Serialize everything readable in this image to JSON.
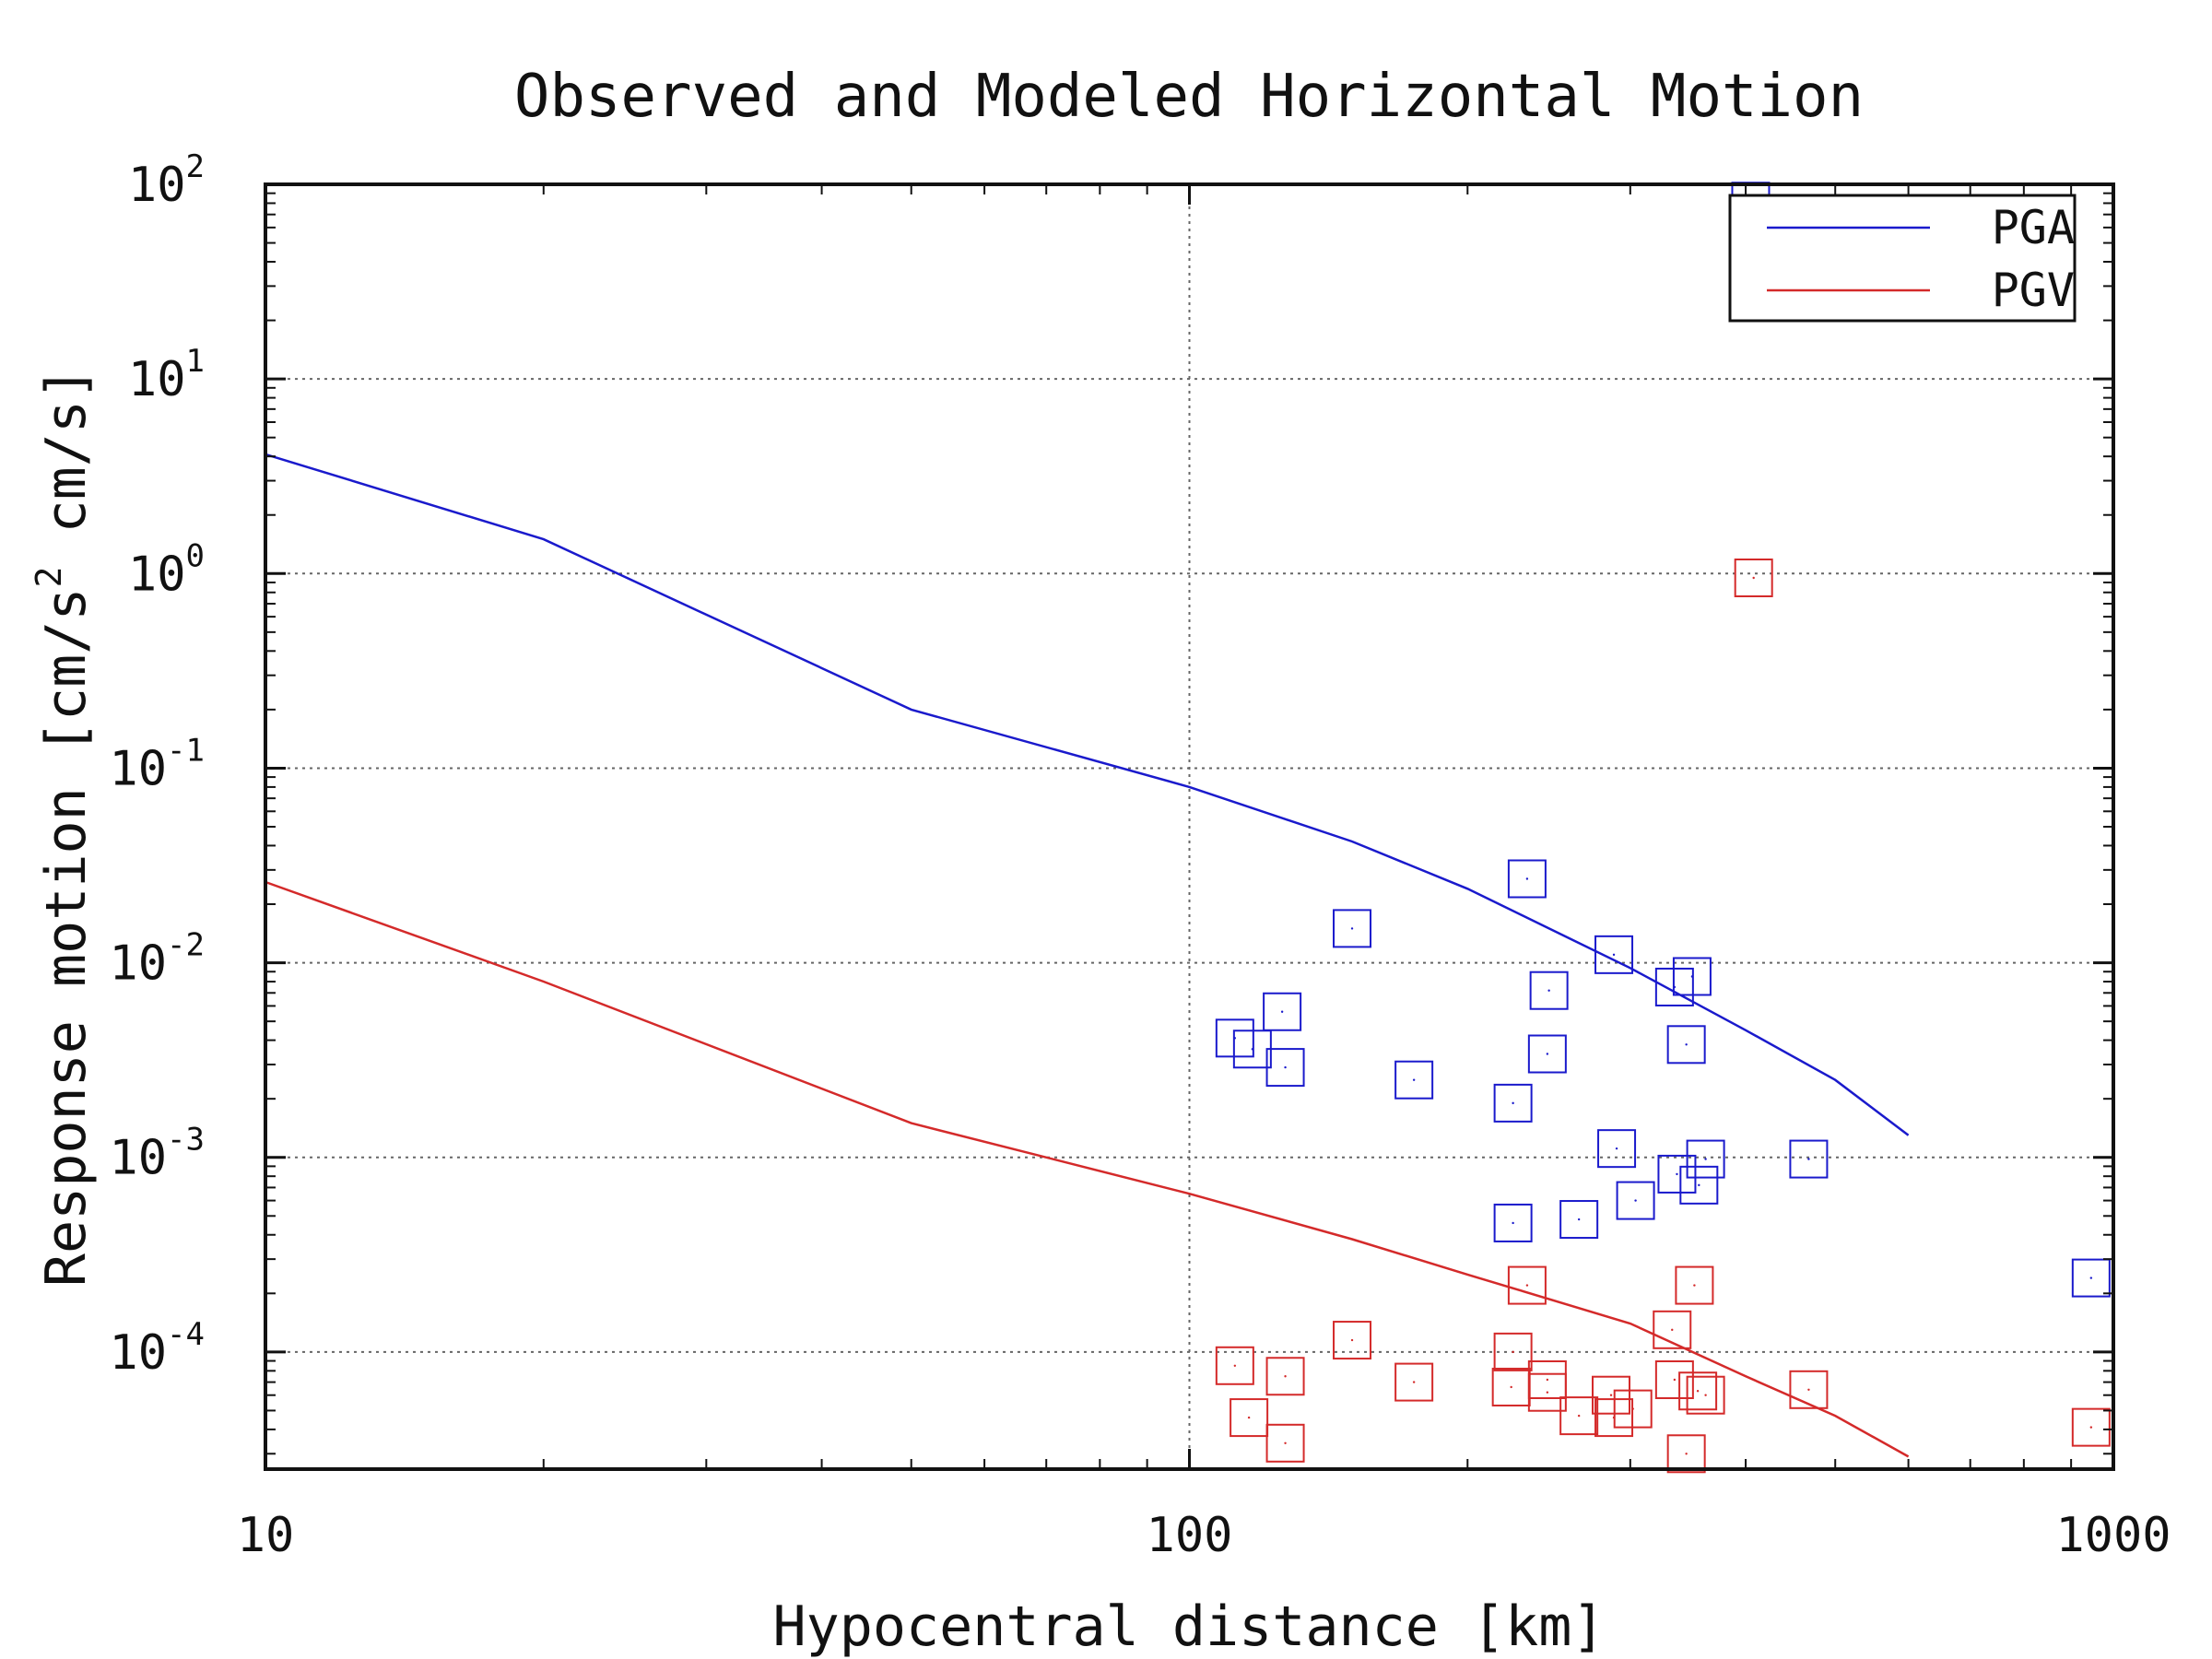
{
  "chart_data": {
    "type": "scatter",
    "title": "Observed and Modeled Horizontal Motion",
    "xlabel": "Hypocentral distance [km]",
    "ylabel": {
      "part1": "Response motion  [cm/s",
      "sup": "2",
      "part2": "  cm/s]"
    },
    "x_scale": "log",
    "y_scale": "log",
    "xlim": [
      10,
      1000
    ],
    "ylim": [
      2.5e-05,
      100
    ],
    "grid": true,
    "legend_position": "top-right",
    "x_ticks": [
      {
        "value": 10,
        "label": "10"
      },
      {
        "value": 100,
        "label": "100"
      },
      {
        "value": 1000,
        "label": "1000"
      }
    ],
    "y_ticks": [
      {
        "value": 0.0001,
        "base": "10",
        "exp": "-4"
      },
      {
        "value": 0.001,
        "base": "10",
        "exp": "-3"
      },
      {
        "value": 0.01,
        "base": "10",
        "exp": "-2"
      },
      {
        "value": 0.1,
        "base": "10",
        "exp": "-1"
      },
      {
        "value": 1,
        "base": "10",
        "exp": "0"
      },
      {
        "value": 10,
        "base": "10",
        "exp": "1"
      },
      {
        "value": 100,
        "base": "10",
        "exp": "2"
      }
    ],
    "series": [
      {
        "name": "PGA",
        "color": "#1a1acc",
        "line": [
          [
            10,
            4.1
          ],
          [
            20,
            1.5
          ],
          [
            50,
            0.2
          ],
          [
            100,
            0.08
          ],
          [
            150,
            0.042
          ],
          [
            200,
            0.024
          ],
          [
            300,
            0.0094
          ],
          [
            400,
            0.0045
          ],
          [
            500,
            0.0025
          ],
          [
            600,
            0.0013
          ]
        ],
        "points": [
          [
            405,
            82
          ],
          [
            232,
            0.027
          ],
          [
            150,
            0.015
          ],
          [
            288,
            0.011
          ],
          [
            350,
            0.0085
          ],
          [
            335,
            0.0075
          ],
          [
            245,
            0.0072
          ],
          [
            126,
            0.0056
          ],
          [
            112,
            0.0041
          ],
          [
            117,
            0.0036
          ],
          [
            127,
            0.0029
          ],
          [
            244,
            0.0034
          ],
          [
            345,
            0.0038
          ],
          [
            175,
            0.0025
          ],
          [
            224,
            0.0019
          ],
          [
            468,
            0.00098
          ],
          [
            290,
            0.00111
          ],
          [
            362,
            0.00098
          ],
          [
            337,
            0.00082
          ],
          [
            356,
            0.00072
          ],
          [
            304,
            0.0006
          ],
          [
            264,
            0.00048
          ],
          [
            224,
            0.00046
          ],
          [
            946,
            0.00024
          ]
        ]
      },
      {
        "name": "PGV",
        "color": "#d42a2a",
        "line": [
          [
            10,
            0.026
          ],
          [
            20,
            0.008
          ],
          [
            50,
            0.0015
          ],
          [
            100,
            0.00065
          ],
          [
            150,
            0.00038
          ],
          [
            200,
            0.00025
          ],
          [
            300,
            0.00014
          ],
          [
            400,
            7.5e-05
          ],
          [
            500,
            4.7e-05
          ],
          [
            600,
            2.9e-05
          ]
        ],
        "points": [
          [
            408,
            0.95
          ],
          [
            232,
            0.00022
          ],
          [
            352,
            0.00022
          ],
          [
            150,
            0.000115
          ],
          [
            333,
            0.00013
          ],
          [
            224,
            0.0001
          ],
          [
            112,
            8.5e-05
          ],
          [
            127,
            7.5e-05
          ],
          [
            175,
            7e-05
          ],
          [
            244,
            7.2e-05
          ],
          [
            223,
            6.6e-05
          ],
          [
            244,
            6.2e-05
          ],
          [
            335,
            7.2e-05
          ],
          [
            286,
            6e-05
          ],
          [
            355,
            6.3e-05
          ],
          [
            362,
            6e-05
          ],
          [
            468,
            6.4e-05
          ],
          [
            264,
            4.7e-05
          ],
          [
            288,
            4.6e-05
          ],
          [
            302,
            5.1e-05
          ],
          [
            116,
            4.6e-05
          ],
          [
            127,
            3.4e-05
          ],
          [
            345,
            3e-05
          ],
          [
            946,
            4.1e-05
          ]
        ]
      }
    ]
  }
}
